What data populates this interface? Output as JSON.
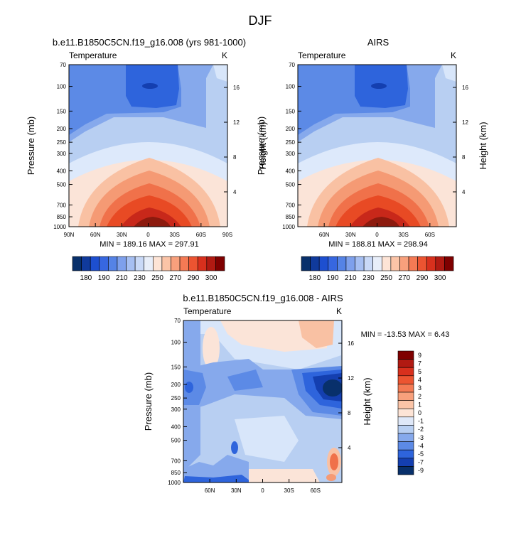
{
  "page_title": "DJF",
  "colors": {
    "panel_axis": "#000000",
    "neg_deep": "#08306b",
    "pos_deep": "#7f0000"
  },
  "chart_data": [
    {
      "type": "heatmap",
      "title": "b.e11.B1850C5CN.f19_g16.008 (yrs 981-1000)",
      "left_label": "Temperature",
      "right_label": "K",
      "xlabel": "",
      "ylabel": "Pressure (mb)",
      "y2label": "Height (km)",
      "x_ticks": [
        "90N",
        "60N",
        "30N",
        "0",
        "30S",
        "60S",
        "90S"
      ],
      "x_range": [
        90,
        -90
      ],
      "y_ticks": [
        "70",
        "100",
        "150",
        "200",
        "250",
        "300",
        "400",
        "500",
        "700",
        "850",
        "1000"
      ],
      "y_range_mb": [
        70,
        1000
      ],
      "height_ticks_km": [
        "4",
        "8",
        "12",
        "16"
      ],
      "stats": "MIN = 189.16   MAX = 297.91",
      "colorbar_levels": [
        "180",
        "190",
        "210",
        "230",
        "250",
        "270",
        "290",
        "300"
      ]
    },
    {
      "type": "heatmap",
      "title": "AIRS",
      "left_label": "Temperature",
      "right_label": "K",
      "xlabel": "",
      "ylabel": "Pressure (mb)",
      "y2label": "Height (km)",
      "x_ticks": [
        "60N",
        "30N",
        "0",
        "30S",
        "60S"
      ],
      "x_range": [
        90,
        -90
      ],
      "y_ticks": [
        "70",
        "100",
        "150",
        "200",
        "250",
        "300",
        "400",
        "500",
        "700",
        "850",
        "1000"
      ],
      "y_range_mb": [
        70,
        1000
      ],
      "height_ticks_km": [
        "4",
        "8",
        "12",
        "16"
      ],
      "stats": "MIN = 188.81   MAX = 298.94",
      "colorbar_levels": [
        "180",
        "190",
        "210",
        "230",
        "250",
        "270",
        "290",
        "300"
      ]
    },
    {
      "type": "heatmap",
      "title": "b.e11.B1850C5CN.f19_g16.008 - AIRS",
      "left_label": "Temperature",
      "right_label": "K",
      "xlabel": "",
      "ylabel": "Pressure (mb)",
      "y2label": "Height (km)",
      "x_ticks": [
        "60N",
        "30N",
        "0",
        "30S",
        "60S"
      ],
      "x_range": [
        90,
        -90
      ],
      "y_ticks": [
        "70",
        "100",
        "150",
        "200",
        "250",
        "300",
        "400",
        "500",
        "700",
        "850",
        "1000"
      ],
      "y_range_mb": [
        70,
        1000
      ],
      "height_ticks_km": [
        "4",
        "8",
        "12",
        "16"
      ],
      "stats": "MIN = -13.53  MAX =   6.43",
      "colorbar_levels": [
        "9",
        "7",
        "5",
        "4",
        "3",
        "2",
        "1",
        "0",
        "-1",
        "-2",
        "-3",
        "-4",
        "-5",
        "-7",
        "-9"
      ]
    }
  ]
}
